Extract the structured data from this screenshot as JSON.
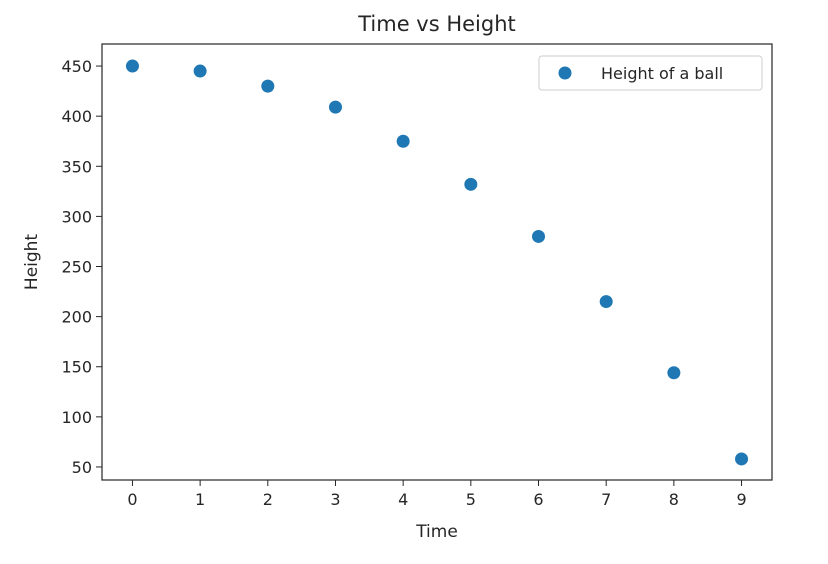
{
  "chart_data": {
    "type": "scatter",
    "title": "Time vs Height",
    "xlabel": "Time",
    "ylabel": "Height",
    "xlim": [
      -0.45,
      9.45
    ],
    "ylim": [
      37,
      472
    ],
    "xticks": [
      0,
      1,
      2,
      3,
      4,
      5,
      6,
      7,
      8,
      9
    ],
    "yticks": [
      50,
      100,
      150,
      200,
      250,
      300,
      350,
      400,
      450
    ],
    "grid": false,
    "legend_position": "top-right",
    "series": [
      {
        "name": "Height of a ball",
        "color": "#1f77b4",
        "marker": "circle",
        "x": [
          0,
          1,
          2,
          3,
          4,
          5,
          6,
          7,
          8,
          9
        ],
        "y": [
          450,
          445,
          430,
          409,
          375,
          332,
          280,
          215,
          144,
          58
        ]
      }
    ]
  }
}
